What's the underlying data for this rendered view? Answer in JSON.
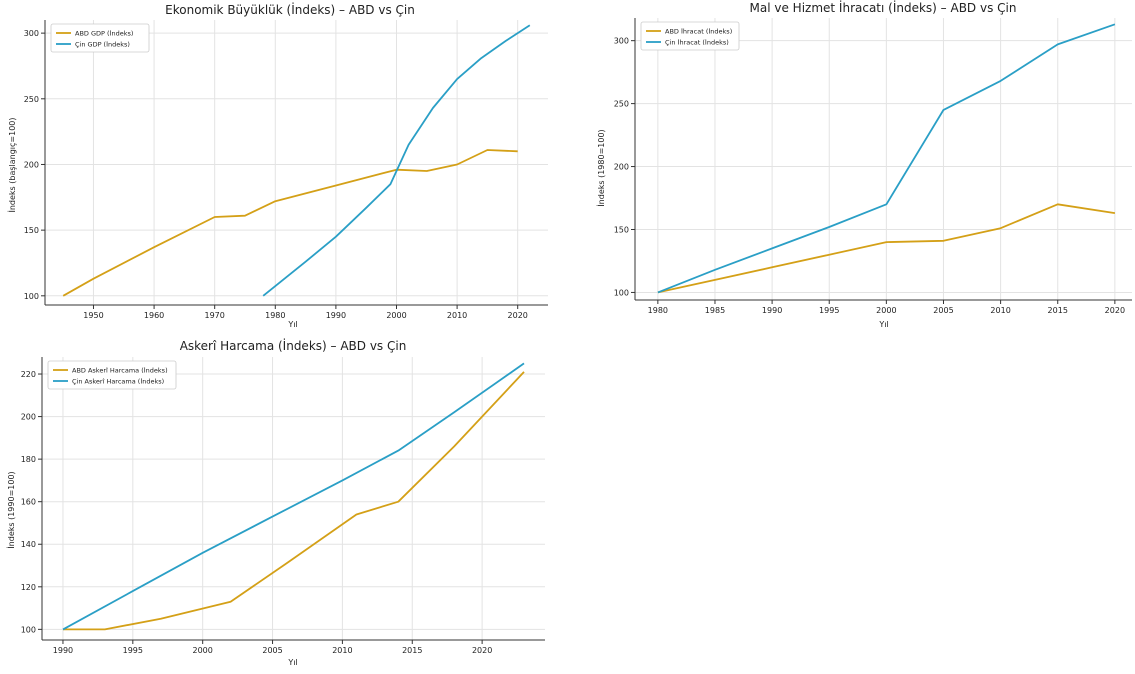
{
  "colors": {
    "us": "#d4a017",
    "china": "#2a9fc6"
  },
  "chart_data": [
    {
      "type": "line",
      "title": "Ekonomik Büyüklük (İndeks) – ABD vs Çin",
      "xlabel": "Yıl",
      "ylabel": "İndeks (başlangıç=100)",
      "xlim": [
        1942,
        2025
      ],
      "ylim": [
        93,
        310
      ],
      "xticks": [
        1950,
        1960,
        1970,
        1980,
        1990,
        2000,
        2010,
        2020
      ],
      "yticks": [
        100,
        150,
        200,
        250,
        300
      ],
      "grid": true,
      "legend": "top-left",
      "series": [
        {
          "name": "ABD GDP (İndeks)",
          "color": "#d4a017",
          "x": [
            1945,
            1950,
            1960,
            1970,
            1975,
            1980,
            1990,
            2000,
            2005,
            2010,
            2015,
            2020
          ],
          "y": [
            100,
            113,
            137,
            160,
            161,
            172,
            184,
            196,
            195,
            200,
            211,
            210
          ]
        },
        {
          "name": "Çin GDP (İndeks)",
          "color": "#2a9fc6",
          "x": [
            1978,
            1985,
            1990,
            1995,
            1999,
            2002,
            2006,
            2010,
            2014,
            2018,
            2022
          ],
          "y": [
            100,
            126,
            145,
            167,
            185,
            215,
            243,
            265,
            281,
            294,
            306
          ]
        }
      ]
    },
    {
      "type": "line",
      "title": "Mal ve Hizmet İhracatı (İndeks) – ABD vs Çin",
      "xlabel": "Yıl",
      "ylabel": "İndeks (1980=100)",
      "xlim": [
        1978,
        2021.5
      ],
      "ylim": [
        94,
        318
      ],
      "xticks": [
        1980,
        1985,
        1990,
        1995,
        2000,
        2005,
        2010,
        2015,
        2020
      ],
      "yticks": [
        100,
        150,
        200,
        250,
        300
      ],
      "grid": true,
      "legend": "top-left",
      "series": [
        {
          "name": "ABD İhracat (İndeks)",
          "color": "#d4a017",
          "x": [
            1980,
            1985,
            1990,
            1995,
            2000,
            2005,
            2010,
            2015,
            2020
          ],
          "y": [
            100,
            110,
            120,
            130,
            140,
            141,
            151,
            170,
            163
          ]
        },
        {
          "name": "Çin İhracat (İndeks)",
          "color": "#2a9fc6",
          "x": [
            1980,
            1985,
            1990,
            1995,
            2000,
            2005,
            2010,
            2015,
            2020
          ],
          "y": [
            100,
            118,
            135,
            152,
            170,
            245,
            268,
            297,
            313
          ]
        }
      ]
    },
    {
      "type": "line",
      "title": "Askerî Harcama (İndeks) – ABD vs Çin",
      "xlabel": "Yıl",
      "ylabel": "İndeks (1990=100)",
      "xlim": [
        1988.5,
        2024.5
      ],
      "ylim": [
        95,
        228
      ],
      "xticks": [
        1990,
        1995,
        2000,
        2005,
        2010,
        2015,
        2020
      ],
      "yticks": [
        100,
        120,
        140,
        160,
        180,
        200,
        220
      ],
      "grid": true,
      "legend": "top-left",
      "series": [
        {
          "name": "ABD Askerî Harcama (İndeks)",
          "color": "#d4a017",
          "x": [
            1990,
            1993,
            1997,
            2002,
            2006,
            2011,
            2014,
            2018,
            2023
          ],
          "y": [
            100,
            100,
            105,
            113,
            131,
            154,
            160,
            186,
            221
          ]
        },
        {
          "name": "Çin Askerî Harcama (İndeks)",
          "color": "#2a9fc6",
          "x": [
            1990,
            1995,
            2000,
            2005,
            2010,
            2014,
            2018,
            2023
          ],
          "y": [
            100,
            118,
            136,
            153,
            170,
            184,
            202,
            225
          ]
        }
      ]
    }
  ]
}
